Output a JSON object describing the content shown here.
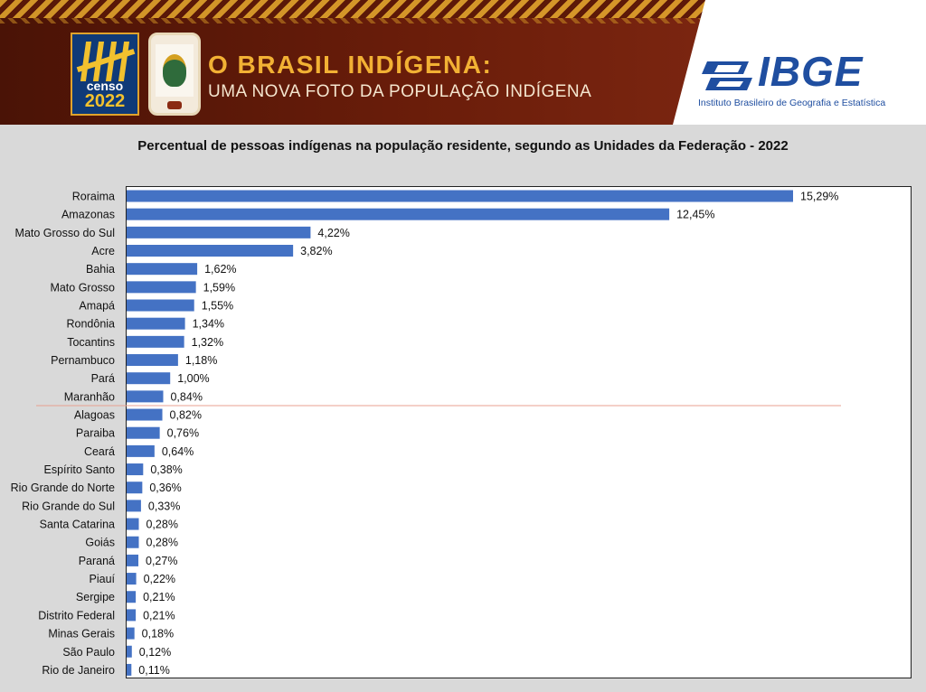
{
  "header": {
    "logo_censo_text": "censo",
    "logo_censo_year": "2022",
    "title": "O BRASIL INDÍGENA:",
    "subtitle": "UMA NOVA FOTO DA POPULAÇÃO INDÍGENA",
    "ibge_word": "IBGE",
    "ibge_full": "Instituto Brasileiro de Geografia e Estatística",
    "colors": {
      "banner": "#6a1d0a",
      "accent": "#f2b134",
      "ibge_blue": "#1f4ea0"
    }
  },
  "chart_data": {
    "type": "bar",
    "orientation": "horizontal",
    "title": "Percentual de pessoas indígenas na população residente, segundo as Unidades da Federação - 2022",
    "xlabel": "",
    "ylabel": "",
    "xlim": [
      0,
      17.5
    ],
    "grid": false,
    "bar_color": "#4472c4",
    "separator_color": "#e8a090",
    "separator_after_index": 11,
    "categories": [
      "Roraima",
      "Amazonas",
      "Mato Grosso do Sul",
      "Acre",
      "Bahia",
      "Mato Grosso",
      "Amapá",
      "Rondônia",
      "Tocantins",
      "Pernambuco",
      "Pará",
      "Maranhão",
      "Alagoas",
      "Paraiba",
      "Ceará",
      "Espírito Santo",
      "Rio Grande do Norte",
      "Rio Grande do Sul",
      "Santa Catarina",
      "Goiás",
      "Paraná",
      "Piauí",
      "Sergipe",
      "Distrito Federal",
      "Minas Gerais",
      "São Paulo",
      "Rio de Janeiro"
    ],
    "values": [
      15.29,
      12.45,
      4.22,
      3.82,
      1.62,
      1.59,
      1.55,
      1.34,
      1.32,
      1.18,
      1.0,
      0.84,
      0.82,
      0.76,
      0.64,
      0.38,
      0.36,
      0.33,
      0.28,
      0.28,
      0.27,
      0.22,
      0.21,
      0.21,
      0.18,
      0.12,
      0.11
    ],
    "value_labels": [
      "15,29%",
      "12,45%",
      "4,22%",
      "3,82%",
      "1,62%",
      "1,59%",
      "1,55%",
      "1,34%",
      "1,32%",
      "1,18%",
      "1,00%",
      "0,84%",
      "0,82%",
      "0,76%",
      "0,64%",
      "0,38%",
      "0,36%",
      "0,33%",
      "0,28%",
      "0,28%",
      "0,27%",
      "0,22%",
      "0,21%",
      "0,21%",
      "0,18%",
      "0,12%",
      "0,11%"
    ]
  }
}
